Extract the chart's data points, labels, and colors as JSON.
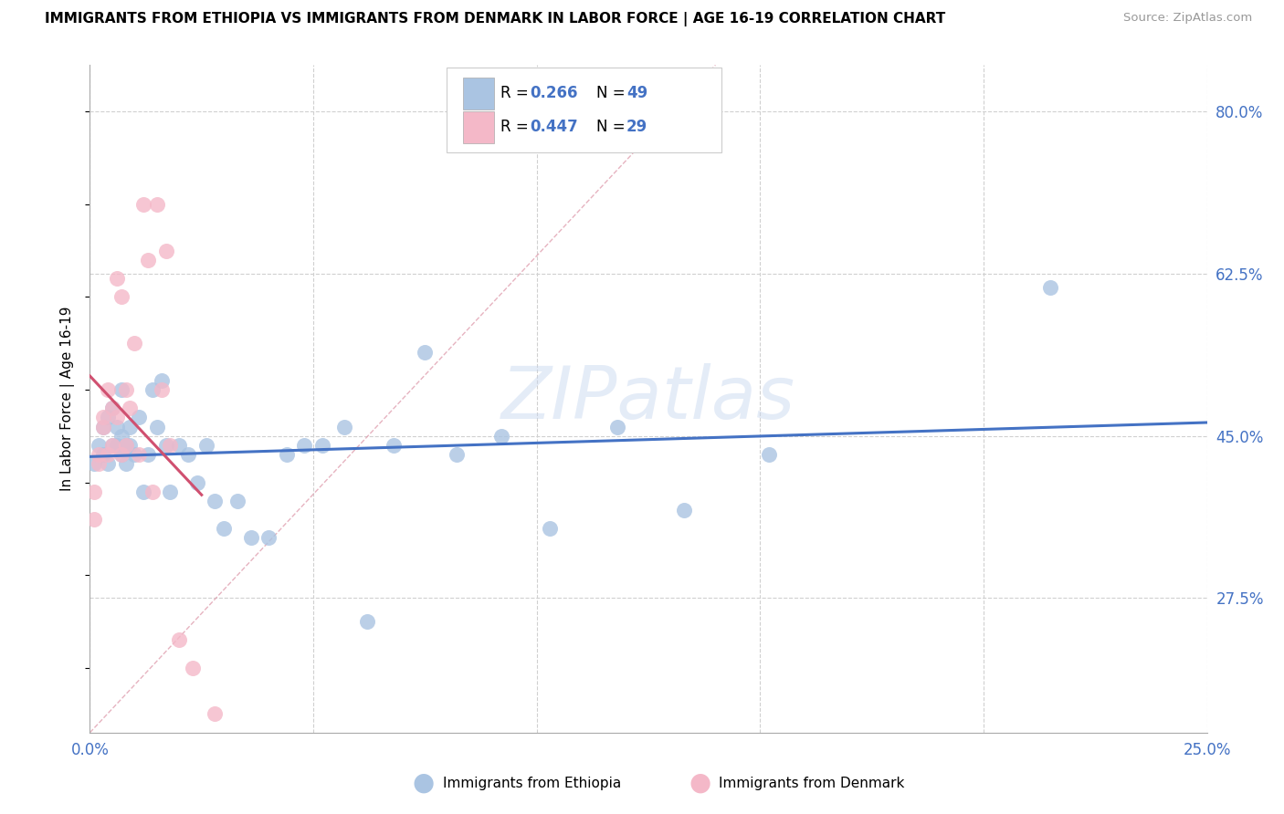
{
  "title": "IMMIGRANTS FROM ETHIOPIA VS IMMIGRANTS FROM DENMARK IN LABOR FORCE | AGE 16-19 CORRELATION CHART",
  "source": "Source: ZipAtlas.com",
  "ylabel": "In Labor Force | Age 16-19",
  "xlim": [
    0.0,
    0.25
  ],
  "ylim": [
    0.13,
    0.85
  ],
  "xtick_positions": [
    0.0,
    0.05,
    0.1,
    0.15,
    0.2,
    0.25
  ],
  "xticklabels": [
    "0.0%",
    "",
    "",
    "",
    "",
    "25.0%"
  ],
  "ytick_right": [
    0.275,
    0.45,
    0.625,
    0.8
  ],
  "yticklabels_right": [
    "27.5%",
    "45.0%",
    "62.5%",
    "80.0%"
  ],
  "r_eth": 0.266,
  "n_eth": 49,
  "r_den": 0.447,
  "n_den": 29,
  "color_eth_fill": "#aac4e2",
  "color_den_fill": "#f4b8c8",
  "color_eth_line": "#4472c4",
  "color_den_line": "#d05070",
  "color_diag": "#e8b0b8",
  "color_r_text": "#4472c4",
  "watermark": "ZIPatlas",
  "ethiopia_x": [
    0.001,
    0.002,
    0.003,
    0.003,
    0.004,
    0.004,
    0.005,
    0.005,
    0.006,
    0.006,
    0.007,
    0.007,
    0.007,
    0.008,
    0.008,
    0.009,
    0.009,
    0.01,
    0.011,
    0.012,
    0.013,
    0.014,
    0.015,
    0.016,
    0.017,
    0.018,
    0.02,
    0.022,
    0.024,
    0.026,
    0.028,
    0.03,
    0.033,
    0.036,
    0.04,
    0.044,
    0.048,
    0.052,
    0.057,
    0.062,
    0.068,
    0.075,
    0.082,
    0.092,
    0.103,
    0.118,
    0.133,
    0.152,
    0.215
  ],
  "ethiopia_y": [
    0.42,
    0.44,
    0.43,
    0.46,
    0.42,
    0.47,
    0.44,
    0.48,
    0.44,
    0.46,
    0.43,
    0.45,
    0.5,
    0.44,
    0.42,
    0.44,
    0.46,
    0.43,
    0.47,
    0.39,
    0.43,
    0.5,
    0.46,
    0.51,
    0.44,
    0.39,
    0.44,
    0.43,
    0.4,
    0.44,
    0.38,
    0.35,
    0.38,
    0.34,
    0.34,
    0.43,
    0.44,
    0.44,
    0.46,
    0.25,
    0.44,
    0.54,
    0.43,
    0.45,
    0.35,
    0.46,
    0.37,
    0.43,
    0.61
  ],
  "denmark_x": [
    0.001,
    0.001,
    0.002,
    0.002,
    0.003,
    0.003,
    0.004,
    0.004,
    0.005,
    0.005,
    0.006,
    0.006,
    0.007,
    0.007,
    0.008,
    0.008,
    0.009,
    0.01,
    0.011,
    0.012,
    0.013,
    0.014,
    0.015,
    0.016,
    0.017,
    0.018,
    0.02,
    0.023,
    0.028
  ],
  "denmark_y": [
    0.39,
    0.36,
    0.42,
    0.43,
    0.46,
    0.47,
    0.43,
    0.5,
    0.48,
    0.44,
    0.47,
    0.62,
    0.43,
    0.6,
    0.44,
    0.5,
    0.48,
    0.55,
    0.43,
    0.7,
    0.64,
    0.39,
    0.7,
    0.5,
    0.65,
    0.44,
    0.23,
    0.2,
    0.15
  ]
}
